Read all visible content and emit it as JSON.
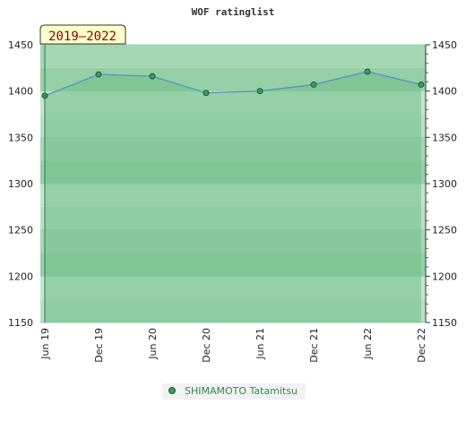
{
  "chart_data": {
    "type": "line",
    "title": "WOF ratinglist",
    "period_label": "2019–2022",
    "categories": [
      "Jun 19",
      "Dec 19",
      "Jun 20",
      "Dec 20",
      "Jun 21",
      "Dec 21",
      "Jun 22",
      "Dec 22"
    ],
    "series": [
      {
        "name": "SHIMAMOTO Tatamitsu",
        "values": [
          1395,
          1418,
          1416,
          1398,
          1400,
          1407,
          1421,
          1407
        ]
      }
    ],
    "ylim": [
      1150,
      1450
    ],
    "y_ticks": [
      1150,
      1200,
      1250,
      1300,
      1350,
      1400,
      1450
    ],
    "grid": true,
    "legend_position": "bottom",
    "colors": {
      "band_light": "#b5ddc2",
      "band_dark": "#8fcca1",
      "line": "#5b8fd0",
      "marker": "#3a9d5d",
      "period_bg": "#ffffcc"
    }
  }
}
